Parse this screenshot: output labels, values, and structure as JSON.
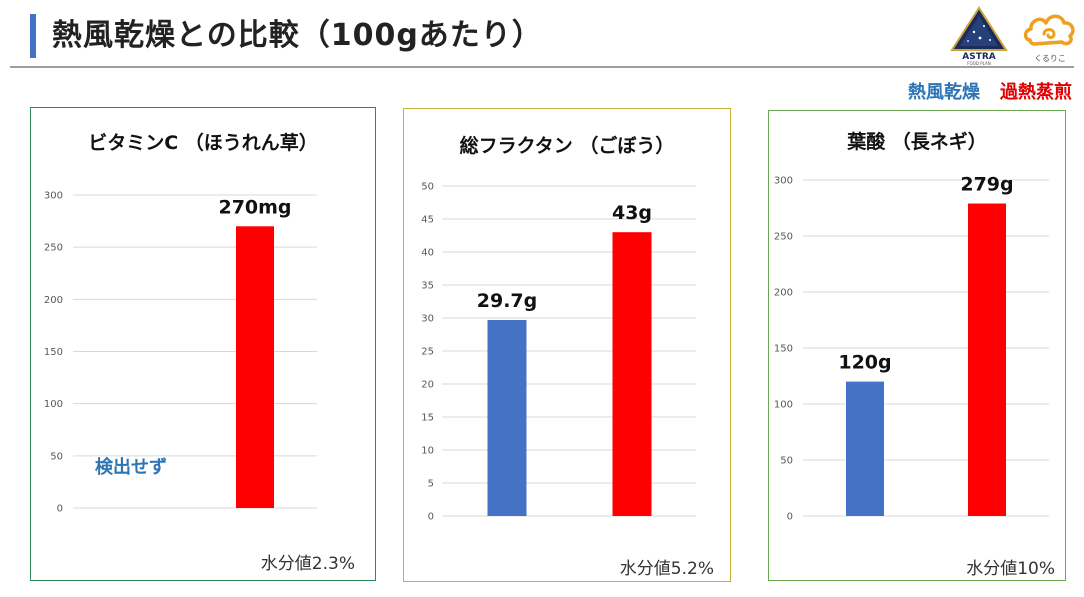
{
  "page": {
    "title": "熱風乾燥との比較（100gあたり）",
    "logos": {
      "astra_text": "ASTRA",
      "astra_sub": "FOOD PLAN",
      "kuruko_text": "くるりこ"
    },
    "legend": {
      "hot_air": "熱風乾燥",
      "superheated": "過熱蒸煎"
    },
    "colors": {
      "hot_air": "#4472c4",
      "superheated": "#ff0000",
      "legend_blue": "#2e75b6",
      "legend_red": "#e00000",
      "title_bar": "#4472c4",
      "gridline": "#d9d9d9"
    }
  },
  "panels": [
    {
      "title": "ビタミンC （ほうれん草）",
      "moisture": "水分値2.3%",
      "border_color": "#2e8b57"
    },
    {
      "title": "総フラクタン （ごぼう）",
      "moisture": "水分値5.2%",
      "border_color": "#c9b037"
    },
    {
      "title": "葉酸 （長ネギ）",
      "moisture": "水分値10%",
      "border_color": "#6aa84f"
    }
  ],
  "chart_data": [
    {
      "type": "bar",
      "title": "ビタミンC （ほうれん草）",
      "categories": [
        "熱風乾燥",
        "過熱蒸煎"
      ],
      "values": [
        null,
        270
      ],
      "data_labels": [
        "",
        "270mg"
      ],
      "annotation": "検出せず",
      "yticks": [
        0,
        50,
        100,
        150,
        200,
        250,
        300
      ],
      "ylim": [
        0,
        300
      ],
      "grid": true
    },
    {
      "type": "bar",
      "title": "総フラクタン （ごぼう）",
      "categories": [
        "熱風乾燥",
        "過熱蒸煎"
      ],
      "values": [
        29.7,
        43
      ],
      "data_labels": [
        "29.7g",
        "43g"
      ],
      "yticks": [
        0,
        5,
        10,
        15,
        20,
        25,
        30,
        35,
        40,
        45,
        50
      ],
      "ylim": [
        0,
        50
      ],
      "grid": true
    },
    {
      "type": "bar",
      "title": "葉酸 （長ネギ）",
      "categories": [
        "熱風乾燥",
        "過熱蒸煎"
      ],
      "values": [
        120,
        279
      ],
      "data_labels": [
        "120g",
        "279g"
      ],
      "yticks": [
        0,
        50,
        100,
        150,
        200,
        250,
        300
      ],
      "ylim": [
        0,
        300
      ],
      "grid": true
    }
  ]
}
